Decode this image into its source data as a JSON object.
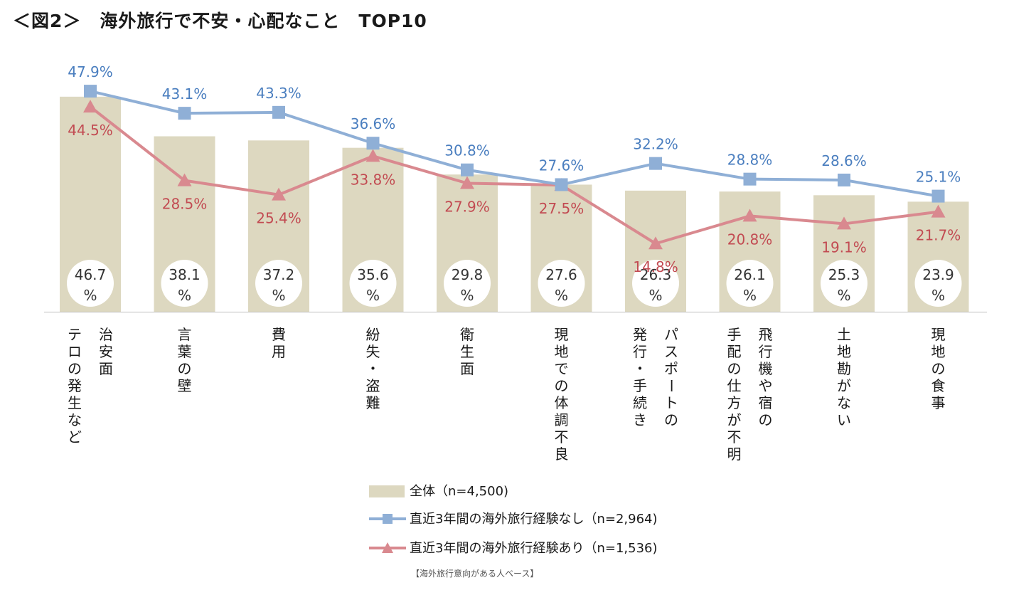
{
  "title": "＜図2＞　海外旅行で不安・心配なこと　TOP10",
  "footnote": "【海外旅行意向がある人ベース】",
  "colors": {
    "bar": "#ddd8c0",
    "series_no_exp": "#8fafd6",
    "series_no_exp_label": "#4a7ebf",
    "series_exp": "#d9898f",
    "series_exp_label": "#c24b52",
    "circle": "#ffffff",
    "axis": "#bfbfbf"
  },
  "chart_data": {
    "type": "bar",
    "categories": [
      [
        "治安面",
        "テロの発生など"
      ],
      [
        "言葉の壁"
      ],
      [
        "費用"
      ],
      [
        "紛失・盗難"
      ],
      [
        "衛生面"
      ],
      [
        "現地での体調不良"
      ],
      [
        "パスポートの",
        "発行・手続き"
      ],
      [
        "飛行機や宿の",
        "手配の仕方が不明"
      ],
      [
        "土地勘がない"
      ],
      [
        "現地の食事"
      ]
    ],
    "ylim": [
      0,
      60
    ],
    "series": [
      {
        "name": "全体（n=4,500)",
        "kind": "bar",
        "values": [
          46.7,
          38.1,
          37.2,
          35.6,
          29.8,
          27.6,
          26.3,
          26.1,
          25.3,
          23.9
        ],
        "labels": [
          [
            "46.7",
            "%"
          ],
          [
            "38.1",
            "%"
          ],
          [
            "37.2",
            "%"
          ],
          [
            "35.6",
            "%"
          ],
          [
            "29.8",
            "%"
          ],
          [
            "27.6",
            "%"
          ],
          [
            "26.3",
            "%"
          ],
          [
            "26.1",
            "%"
          ],
          [
            "25.3",
            "%"
          ],
          [
            "23.9",
            "%"
          ]
        ]
      },
      {
        "name": "直近3年間の海外旅行経験なし（n=2,964)",
        "kind": "line",
        "marker": "square",
        "values": [
          47.9,
          43.1,
          43.3,
          36.6,
          30.8,
          27.6,
          32.2,
          28.8,
          28.6,
          25.1
        ],
        "labels": [
          "47.9%",
          "43.1%",
          "43.3%",
          "36.6%",
          "30.8%",
          "27.6%",
          "32.2%",
          "28.8%",
          "28.6%",
          "25.1%"
        ]
      },
      {
        "name": "直近3年間の海外旅行経験あり（n=1,536)",
        "kind": "line",
        "marker": "triangle",
        "values": [
          44.5,
          28.5,
          25.4,
          33.8,
          27.9,
          27.5,
          14.8,
          20.8,
          19.1,
          21.7
        ],
        "labels": [
          "44.5%",
          "28.5%",
          "25.4%",
          "33.8%",
          "27.9%",
          "27.5%",
          "14.8%",
          "20.8%",
          "19.1%",
          "21.7%"
        ]
      }
    ],
    "legend_position": "bottom-center",
    "grid": false
  }
}
